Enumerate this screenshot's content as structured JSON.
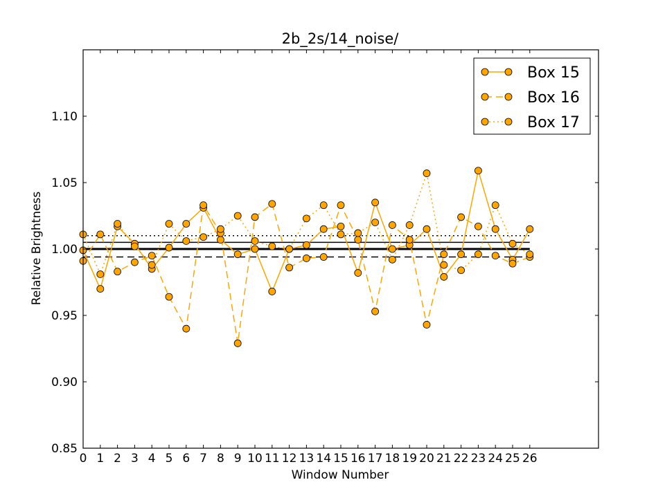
{
  "chart_data": {
    "type": "line",
    "title": "2b_2s/14_noise/",
    "xlabel": "Window Number",
    "ylabel": "Relative Brightness",
    "xlim": [
      0,
      30
    ],
    "ylim": [
      0.85,
      1.15
    ],
    "grid": false,
    "legend_position": "top-right",
    "x_ticks": [
      "0",
      "1",
      "2",
      "3",
      "4",
      "5",
      "6",
      "7",
      "8",
      "9",
      "10",
      "11",
      "12",
      "13",
      "14",
      "15",
      "16",
      "17",
      "18",
      "19",
      "20",
      "21",
      "22",
      "23",
      "24",
      "25",
      "26"
    ],
    "y_ticks": [
      "0.85",
      "0.90",
      "0.95",
      "1.00",
      "1.05",
      "1.10"
    ],
    "colors": {
      "series": "#ffa500",
      "marker_edge": "#000000",
      "reference": "#000000"
    },
    "x": [
      0,
      1,
      2,
      3,
      4,
      5,
      6,
      7,
      8,
      9,
      10,
      11,
      12,
      13,
      14,
      15,
      16,
      17,
      18,
      19,
      20,
      21,
      22,
      23,
      24,
      25,
      26
    ],
    "series": [
      {
        "name": "Box 15",
        "line_style": "solid",
        "values": [
          0.999,
          0.97,
          1.017,
          1.004,
          0.985,
          1.001,
          1.019,
          1.031,
          1.007,
          0.996,
          1.0,
          0.968,
          1.0,
          1.003,
          1.015,
          1.017,
          0.982,
          1.035,
          1.0,
          1.003,
          1.015,
          0.979,
          0.996,
          1.059,
          1.015,
          0.992,
          1.015
        ]
      },
      {
        "name": "Box 16",
        "line_style": "dashed",
        "values": [
          0.991,
          1.011,
          0.983,
          0.99,
          0.995,
          0.964,
          0.94,
          1.033,
          1.012,
          0.929,
          1.024,
          1.034,
          0.986,
          0.993,
          0.994,
          1.033,
          1.007,
          0.953,
          1.018,
          1.007,
          0.943,
          0.996,
          1.024,
          1.017,
          0.995,
          0.989,
          0.994
        ]
      },
      {
        "name": "Box 17",
        "line_style": "dotted",
        "values": [
          1.011,
          0.981,
          1.019,
          1.002,
          0.988,
          1.019,
          1.006,
          1.009,
          1.015,
          1.025,
          1.006,
          1.002,
          1.0,
          1.023,
          1.033,
          1.011,
          1.012,
          1.02,
          0.992,
          1.018,
          1.057,
          0.988,
          0.984,
          0.996,
          1.033,
          1.004,
          0.996
        ]
      }
    ],
    "reference_lines": [
      {
        "value": 1.0,
        "style": "solid-thick"
      },
      {
        "value": 1.005,
        "style": "solid"
      },
      {
        "value": 0.994,
        "style": "dashed"
      },
      {
        "value": 1.01,
        "style": "dotted"
      }
    ]
  }
}
